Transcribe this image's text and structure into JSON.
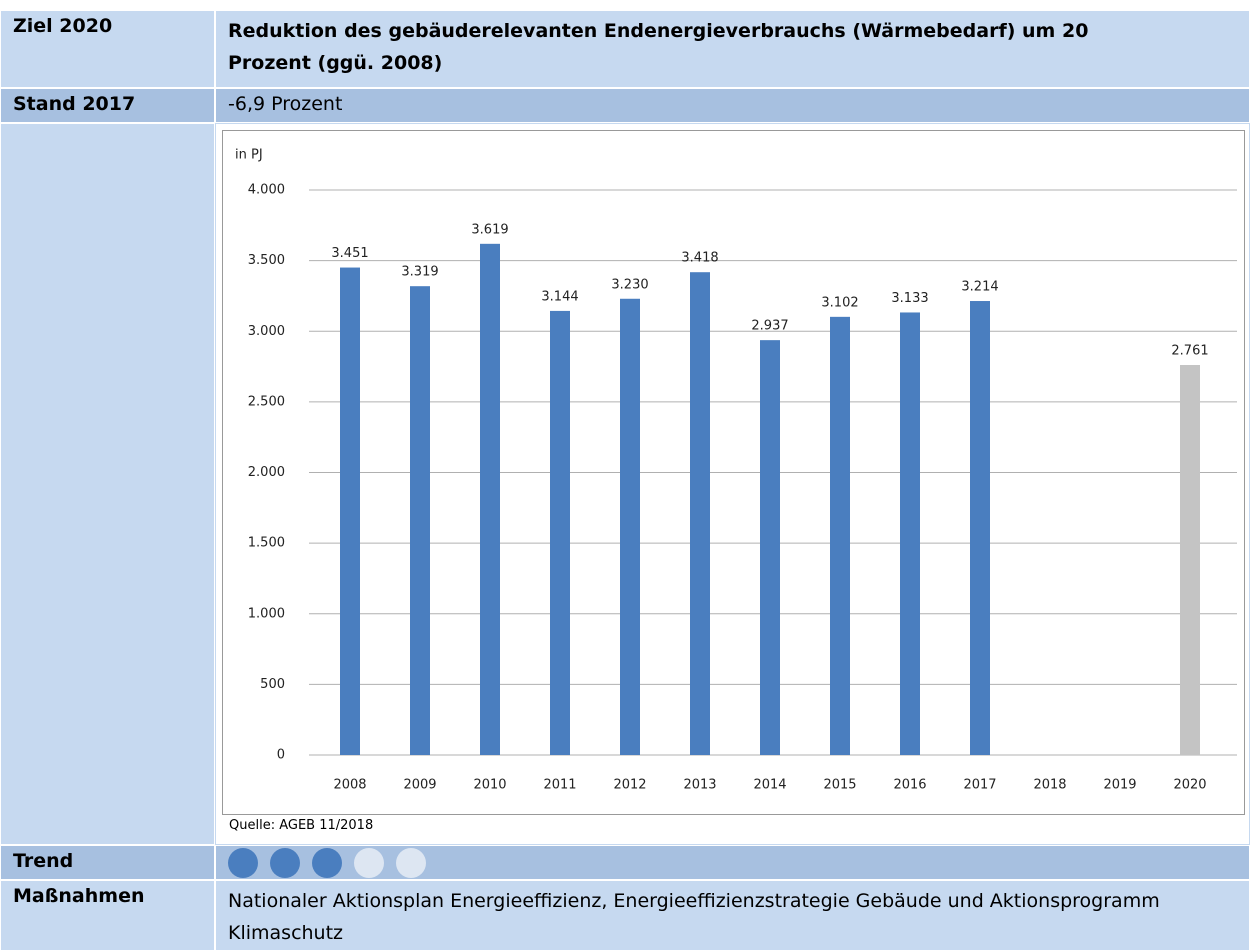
{
  "rows": {
    "goal": {
      "label": "Ziel 2020",
      "text": "Reduktion des gebäuderelevanten Endenergieverbrauchs (Wärmebedarf) um 20 Prozent (ggü. 2008)"
    },
    "status": {
      "label": "Stand 2017",
      "text": "-6,9 Prozent"
    },
    "trend": {
      "label": "Trend",
      "filled": 3,
      "total": 5
    },
    "measures": {
      "label": "Maßnahmen",
      "text": "Nationaler Aktionsplan Energieeffizienz, Energieeffizienzstrategie Gebäude und Aktionsprogramm Klimaschutz"
    }
  },
  "source": "Quelle: AGEB 11/2018",
  "chart_data": {
    "type": "bar",
    "y_label": "in PJ",
    "categories": [
      "2008",
      "2009",
      "2010",
      "2011",
      "2012",
      "2013",
      "2014",
      "2015",
      "2016",
      "2017",
      "2018",
      "2019",
      "2020"
    ],
    "values": [
      3451,
      3319,
      3619,
      3144,
      3230,
      3418,
      2937,
      3102,
      3133,
      3214,
      null,
      null,
      2761
    ],
    "value_labels": [
      "3.451",
      "3.319",
      "3.619",
      "3.144",
      "3.230",
      "3.418",
      "2.937",
      "3.102",
      "3.133",
      "3.214",
      null,
      null,
      "2.761"
    ],
    "colors": [
      "#4a7ebf",
      "#4a7ebf",
      "#4a7ebf",
      "#4a7ebf",
      "#4a7ebf",
      "#4a7ebf",
      "#4a7ebf",
      "#4a7ebf",
      "#4a7ebf",
      "#4a7ebf",
      "#4a7ebf",
      "#4a7ebf",
      "#c4c4c4"
    ],
    "ylim": [
      0,
      4000
    ],
    "yticks": [
      0,
      500,
      {
        "value": 1000,
        "label": "1.000"
      },
      {
        "value": 1500,
        "label": "1.500"
      },
      {
        "value": 2000,
        "label": "2.000"
      },
      {
        "value": 2500,
        "label": "2.500"
      },
      {
        "value": 3000,
        "label": "3.000"
      },
      {
        "value": 3500,
        "label": "3.500"
      },
      {
        "value": 4000,
        "label": "4.000"
      }
    ],
    "grid": true
  }
}
